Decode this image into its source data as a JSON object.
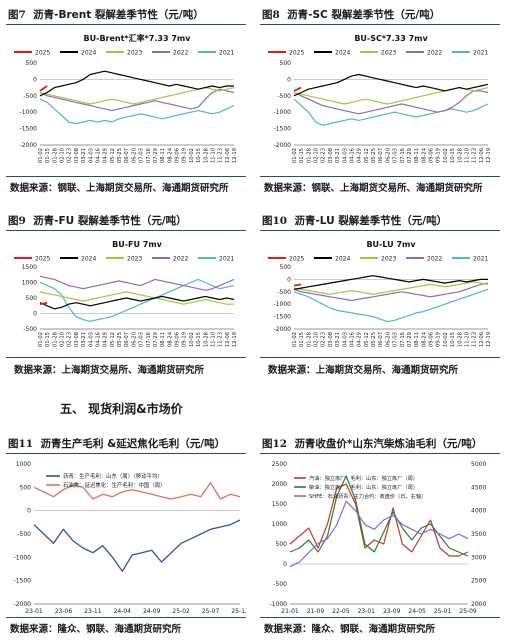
{
  "section_title": "五、   现货利润&市场价",
  "source_a": "数据来源：钢联、上海期货交易所、海通期货研究所",
  "source_b": "数据来源：上海期货交易所、海通期货研究所",
  "source_c": "数据来源：隆众、钢联、海通期货研究所",
  "figures": [
    {
      "num": "图7",
      "title": "沥青-Brent 裂解差季节性（元/吨）"
    },
    {
      "num": "图8",
      "title": "沥青-SC 裂解差季节性（元/吨）"
    },
    {
      "num": "图9",
      "title": "沥青-FU 裂解差季节性（元/吨）"
    },
    {
      "num": "图10",
      "title": "沥青-LU 裂解差季节性（元/吨）"
    },
    {
      "num": "图11",
      "title": "沥青生产毛利 &延迟焦化毛利（元/吨）"
    },
    {
      "num": "图12",
      "title": "沥青收盘价*山东汽柴炼油毛利（元/吨）"
    }
  ],
  "colors": {
    "2025": "#e41a1c",
    "2024": "#000000",
    "2023": "#9acd32",
    "2022": "#9467bd",
    "2021": "#4db8c8",
    "prod": "#2f5597",
    "coke": "#e07060",
    "gasoline": "#c0392b",
    "diesel": "#2e7d32",
    "close": "#7b68ee",
    "rule": "#27488d"
  },
  "chart_data": [
    {
      "type": "line",
      "title": "BU-Brent*汇率*7.33 7mv",
      "x_ticks": [
        "01-02",
        "01-15",
        "01-28",
        "02-10",
        "02-23",
        "03-08",
        "03-21",
        "04-03",
        "04-16",
        "04-29",
        "05-12",
        "05-25",
        "06-07",
        "06-20",
        "07-03",
        "07-16",
        "07-29",
        "08-11",
        "08-24",
        "09-06",
        "09-19",
        "10-02",
        "10-15",
        "10-28",
        "11-10",
        "11-23",
        "12-06",
        "12-19"
      ],
      "y_ticks": [
        500,
        0,
        -500,
        -1000,
        -1500,
        -2000
      ],
      "ylim": [
        -2000,
        500
      ],
      "legend": [
        "2025",
        "2024",
        "2023",
        "2022",
        "2021"
      ],
      "series": [
        {
          "name": "2025",
          "values": [
            -350,
            -200
          ]
        },
        {
          "name": "2024",
          "values": [
            -500,
            -400,
            -250,
            -200,
            -150,
            -100,
            0,
            150,
            200,
            250,
            200,
            150,
            100,
            50,
            0,
            -50,
            -100,
            -150,
            -200,
            -150,
            -200,
            -250,
            -300,
            -250,
            -200,
            -250,
            -200,
            -200
          ]
        },
        {
          "name": "2023",
          "values": [
            -400,
            -450,
            -500,
            -550,
            -600,
            -650,
            -700,
            -750,
            -700,
            -650,
            -600,
            -650,
            -700,
            -750,
            -700,
            -650,
            -600,
            -550,
            -500,
            -450,
            -400,
            -350,
            -300,
            -250,
            -300,
            -350,
            -300,
            -250
          ]
        },
        {
          "name": "2022",
          "values": [
            -400,
            -500,
            -550,
            -600,
            -650,
            -700,
            -750,
            -800,
            -850,
            -900,
            -950,
            -900,
            -850,
            -800,
            -750,
            -700,
            -650,
            -700,
            -750,
            -800,
            -850,
            -900,
            -850,
            -600,
            -400,
            -300,
            -350,
            -400
          ]
        },
        {
          "name": "2021",
          "values": [
            -600,
            -700,
            -900,
            -1100,
            -1300,
            -1350,
            -1300,
            -1250,
            -1300,
            -1250,
            -1300,
            -1200,
            -1150,
            -1100,
            -1050,
            -1100,
            -1150,
            -1200,
            -1150,
            -1100,
            -1050,
            -1000,
            -950,
            -1000,
            -1050,
            -1000,
            -900,
            -800
          ]
        }
      ]
    },
    {
      "type": "line",
      "title": "BU-SC*7.33 7mv",
      "x_ticks": [
        "01-02",
        "01-15",
        "01-28",
        "02-10",
        "02-23",
        "03-08",
        "03-21",
        "04-03",
        "04-16",
        "04-29",
        "05-12",
        "05-25",
        "06-07",
        "06-20",
        "07-03",
        "07-16",
        "07-29",
        "08-11",
        "08-24",
        "09-06",
        "09-19",
        "10-02",
        "10-15",
        "10-28",
        "11-10",
        "11-23",
        "12-06",
        "12-19"
      ],
      "y_ticks": [
        500,
        0,
        -500,
        -1000,
        -1500,
        -2000
      ],
      "ylim": [
        -2000,
        500
      ],
      "legend": [
        "2025",
        "2024",
        "2023",
        "2022",
        "2021"
      ],
      "series": [
        {
          "name": "2025",
          "values": [
            -350,
            -250
          ]
        },
        {
          "name": "2024",
          "values": [
            -500,
            -400,
            -300,
            -250,
            -200,
            -150,
            -100,
            0,
            100,
            150,
            100,
            50,
            0,
            -50,
            -100,
            -150,
            -200,
            -250,
            -200,
            -250,
            -300,
            -350,
            -300,
            -250,
            -300,
            -250,
            -200,
            -150
          ]
        },
        {
          "name": "2023",
          "values": [
            -400,
            -450,
            -500,
            -550,
            -600,
            -650,
            -700,
            -750,
            -700,
            -650,
            -600,
            -650,
            -700,
            -750,
            -700,
            -650,
            -600,
            -550,
            -500,
            -450,
            -400,
            -350,
            -300,
            -250,
            -300,
            -350,
            -300,
            -250
          ]
        },
        {
          "name": "2022",
          "values": [
            -400,
            -500,
            -600,
            -700,
            -800,
            -850,
            -900,
            -950,
            -1000,
            -1050,
            -1000,
            -950,
            -900,
            -850,
            -800,
            -750,
            -800,
            -850,
            -900,
            -950,
            -1000,
            -950,
            -850,
            -700,
            -500,
            -350,
            -350,
            -400
          ]
        },
        {
          "name": "2021",
          "values": [
            -600,
            -800,
            -1000,
            -1300,
            -1400,
            -1350,
            -1300,
            -1250,
            -1200,
            -1250,
            -1200,
            -1150,
            -1100,
            -1050,
            -1000,
            -1050,
            -1100,
            -1150,
            -1100,
            -1050,
            -1000,
            -950,
            -900,
            -950,
            -1000,
            -950,
            -850,
            -750
          ]
        }
      ]
    },
    {
      "type": "line",
      "title": "BU-FU 7mv",
      "x_ticks": [
        "01-02",
        "01-15",
        "01-28",
        "02-10",
        "02-23",
        "03-08",
        "03-21",
        "04-03",
        "04-16",
        "04-29",
        "05-12",
        "05-25",
        "06-07",
        "06-20",
        "07-03",
        "07-16",
        "07-29",
        "08-11",
        "08-24",
        "09-06",
        "09-19",
        "10-02",
        "10-15",
        "10-28",
        "11-10",
        "11-23",
        "12-06",
        "12-19"
      ],
      "y_ticks": [
        1500,
        1000,
        500,
        0,
        -500
      ],
      "ylim": [
        -500,
        1500
      ],
      "legend": [
        "2025",
        "2024",
        "2023",
        "2022",
        "2021"
      ],
      "series": [
        {
          "name": "2025",
          "values": [
            300,
            350
          ]
        },
        {
          "name": "2024",
          "values": [
            350,
            250,
            150,
            200,
            300,
            350,
            300,
            250,
            300,
            350,
            400,
            450,
            500,
            450,
            400,
            450,
            500,
            550,
            500,
            450,
            400,
            450,
            500,
            550,
            500,
            450,
            500,
            450
          ]
        },
        {
          "name": "2023",
          "values": [
            700,
            650,
            600,
            550,
            500,
            450,
            400,
            450,
            500,
            550,
            600,
            650,
            700,
            650,
            600,
            550,
            500,
            450,
            400,
            350,
            300,
            350,
            400,
            450,
            400,
            350,
            300,
            300
          ]
        },
        {
          "name": "2022",
          "values": [
            1200,
            1150,
            1100,
            1000,
            900,
            850,
            800,
            850,
            900,
            950,
            1000,
            1050,
            1000,
            950,
            900,
            1000,
            1100,
            1050,
            1000,
            950,
            900,
            850,
            800,
            750,
            800,
            900,
            1000,
            1100
          ]
        },
        {
          "name": "2021",
          "values": [
            1000,
            900,
            800,
            600,
            200,
            -100,
            -200,
            -250,
            -200,
            -150,
            -100,
            0,
            100,
            200,
            300,
            400,
            500,
            600,
            700,
            800,
            900,
            1000,
            1100,
            1000,
            900,
            800,
            850,
            900
          ]
        }
      ]
    },
    {
      "type": "line",
      "title": "BU-LU 7mv",
      "x_ticks": [
        "01-02",
        "01-15",
        "01-28",
        "02-10",
        "02-23",
        "03-08",
        "03-21",
        "04-03",
        "04-16",
        "04-29",
        "05-12",
        "05-25",
        "06-07",
        "06-20",
        "07-03",
        "07-16",
        "07-29",
        "08-11",
        "08-24",
        "09-06",
        "09-19",
        "10-02",
        "10-15",
        "10-28",
        "11-10",
        "11-23",
        "12-06",
        "12-19"
      ],
      "y_ticks": [
        500,
        0,
        -500,
        -1000,
        -1500,
        -2000
      ],
      "ylim": [
        -2000,
        500
      ],
      "legend": [
        "2025",
        "2024",
        "2023",
        "2022",
        "2021"
      ],
      "series": [
        {
          "name": "2025",
          "values": [
            -250,
            -200
          ]
        },
        {
          "name": "2024",
          "values": [
            -400,
            -350,
            -300,
            -250,
            -200,
            -150,
            -100,
            -50,
            0,
            50,
            100,
            150,
            100,
            50,
            0,
            -50,
            -100,
            -50,
            0,
            -50,
            -100,
            -150,
            -100,
            -50,
            -100,
            -50,
            0,
            0
          ]
        },
        {
          "name": "2023",
          "values": [
            -350,
            -400,
            -450,
            -500,
            -550,
            -600,
            -550,
            -500,
            -450,
            -500,
            -550,
            -600,
            -550,
            -500,
            -450,
            -400,
            -350,
            -300,
            -250,
            -200,
            -250,
            -300,
            -250,
            -200,
            -150,
            -100,
            -150,
            -200
          ]
        },
        {
          "name": "2022",
          "values": [
            -400,
            -500,
            -550,
            -600,
            -650,
            -700,
            -750,
            -800,
            -850,
            -800,
            -750,
            -700,
            -650,
            -600,
            -550,
            -500,
            -550,
            -600,
            -650,
            -700,
            -650,
            -600,
            -550,
            -500,
            -400,
            -300,
            -200,
            -150
          ]
        },
        {
          "name": "2021",
          "values": [
            -500,
            -600,
            -700,
            -850,
            -1000,
            -1150,
            -1250,
            -1300,
            -1350,
            -1400,
            -1450,
            -1500,
            -1600,
            -1700,
            -1650,
            -1550,
            -1450,
            -1350,
            -1300,
            -1200,
            -1100,
            -1000,
            -900,
            -800,
            -700,
            -600,
            -500,
            -400
          ]
        }
      ]
    },
    {
      "type": "line",
      "title": "",
      "x_ticks": [
        "23-01",
        "23-06",
        "23-11",
        "24-04",
        "24-09",
        "25-02",
        "25-07",
        "25-12"
      ],
      "y_ticks": [
        1000,
        500,
        0,
        -500,
        -1000,
        -1500,
        -2000
      ],
      "ylim": [
        -2000,
        1000
      ],
      "legend": [
        "沥青：生产毛利：山东（周）（移动平均）",
        "石油焦：延迟焦化：生产毛利：中国（周）"
      ],
      "series": [
        {
          "name": "沥青：生产毛利：山东（周）（移动平均）",
          "values": [
            -300,
            -500,
            -700,
            -400,
            -650,
            -800,
            -900,
            -750,
            -1000,
            -1300,
            -950,
            -900,
            -850,
            -1100,
            -900,
            -700,
            -600,
            -500,
            -400,
            -350,
            -300,
            -200
          ]
        },
        {
          "name": "石油焦：延迟焦化：生产毛利：中国（周）",
          "values": [
            500,
            400,
            300,
            450,
            550,
            500,
            250,
            350,
            300,
            400,
            450,
            400,
            350,
            300,
            250,
            300,
            350,
            300,
            600,
            250,
            350,
            300
          ]
        }
      ]
    },
    {
      "type": "line",
      "title": "",
      "x_ticks": [
        "21-01",
        "21-09",
        "22-05",
        "23-01",
        "23-09",
        "24-05",
        "25-01",
        "25-09"
      ],
      "y_ticks_left": [
        2500,
        2000,
        1500,
        1000,
        500,
        0,
        -500,
        -1000
      ],
      "y_ticks_right": [
        5000,
        4500,
        4000,
        3500,
        3000,
        2500,
        2000
      ],
      "ylim_left": [
        -1000,
        2500
      ],
      "ylim_right": [
        2000,
        5000
      ],
      "legend": [
        "汽油：独立炼厂：毛利：山东：独立炼厂（周）",
        "柴油：独立炼厂：毛利：山东：独立炼厂（周）",
        "SHFE：石油沥青：主力合约：收盘价（日，右轴）"
      ],
      "series": [
        {
          "name": "汽油：独立炼厂：毛利：山东：独立炼厂（周）",
          "values": [
            500,
            700,
            900,
            400,
            1000,
            1900,
            2000,
            1500,
            400,
            600,
            500,
            1400,
            500,
            300,
            700,
            1100,
            400,
            200,
            200,
            300
          ]
        },
        {
          "name": "柴油：独立炼厂：毛利：山东：独立炼厂（周）",
          "values": [
            300,
            400,
            600,
            300,
            700,
            1700,
            2200,
            1600,
            500,
            300,
            800,
            1300,
            900,
            600,
            900,
            1000,
            700,
            400,
            300,
            200
          ]
        },
        {
          "name": "SHFE：石油沥青：主力合约：收盘价（日，右轴）",
          "values": [
            2800,
            2900,
            3100,
            3300,
            3400,
            3700,
            4200,
            4000,
            3700,
            3600,
            3800,
            3900,
            3700,
            3600,
            3500,
            3600,
            3500,
            3400,
            3500,
            3400
          ]
        }
      ]
    }
  ]
}
